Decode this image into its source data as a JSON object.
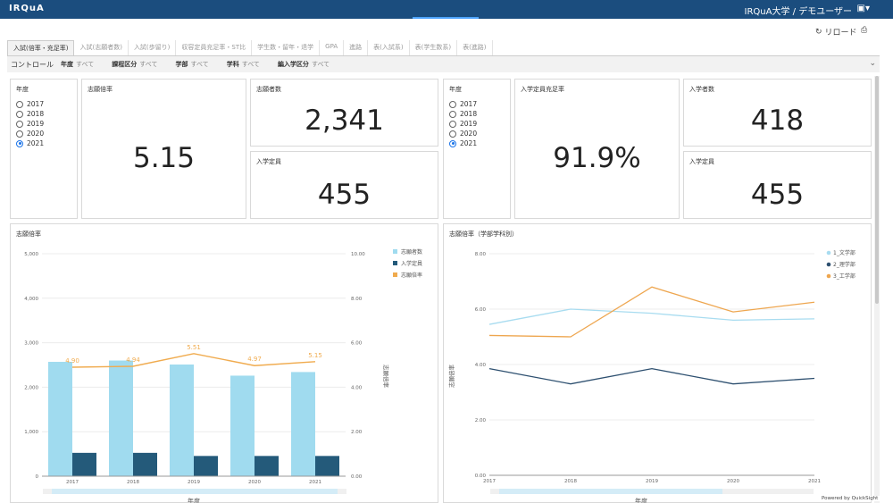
{
  "header": {
    "brand": "IRQuA",
    "user": "IRQuA大学 / デモユーザー",
    "user_icon": "▣▾"
  },
  "toolbar": {
    "reload_icon": "↻",
    "reload_label": "リロード",
    "print_icon": "⎙"
  },
  "tabs": [
    "入試(倍率・充足率)",
    "入試(志願者数)",
    "入試(歩留り)",
    "収容定員充足率・ST比",
    "学生数・留年・退学",
    "GPA",
    "進路",
    "表(入試系)",
    "表(学生数系)",
    "表(進路)"
  ],
  "controls": {
    "title": "コントロール",
    "filters": [
      {
        "label": "年度",
        "value": "すべて"
      },
      {
        "label": "課程区分",
        "value": "すべて"
      },
      {
        "label": "学部",
        "value": "すべて"
      },
      {
        "label": "学科",
        "value": "すべて"
      },
      {
        "label": "編入学区分",
        "value": "すべて"
      }
    ],
    "expand_icon": "⌄"
  },
  "year_filter_1": {
    "title": "年度",
    "options": [
      "2017",
      "2018",
      "2019",
      "2020",
      "2021"
    ],
    "selected": "2021"
  },
  "year_filter_2": {
    "title": "年度",
    "options": [
      "2017",
      "2018",
      "2019",
      "2020",
      "2021"
    ],
    "selected": "2021"
  },
  "kpi": {
    "ratio": {
      "title": "志願倍率",
      "value": "5.15"
    },
    "applicants": {
      "title": "志願者数",
      "value": "2,341"
    },
    "capacity_1": {
      "title": "入学定員",
      "value": "455"
    },
    "fill_rate": {
      "title": "入学定員充足率",
      "value": "91.9%"
    },
    "enrolled": {
      "title": "入学者数",
      "value": "418"
    },
    "capacity_2": {
      "title": "入学定員",
      "value": "455"
    }
  },
  "footer": {
    "powered": "Powered by QuickSight"
  },
  "colors": {
    "applicants": "#a0dbef",
    "capacity": "#245a7a",
    "ratio": "#f0ab4e",
    "arts": "#a8dcf0",
    "science": "#2e5070",
    "engineering": "#eea64f"
  },
  "chart_data": [
    {
      "type": "bar",
      "title": "志願倍率",
      "xlabel": "年度",
      "ylabel_right": "志願倍率",
      "categories": [
        "2017",
        "2018",
        "2019",
        "2020",
        "2021"
      ],
      "series": [
        {
          "name": "志願者数",
          "values": [
            2570,
            2600,
            2510,
            2260,
            2341
          ],
          "axis": "left"
        },
        {
          "name": "入学定員",
          "values": [
            525,
            525,
            455,
            455,
            455
          ],
          "axis": "left"
        },
        {
          "name": "志願倍率",
          "values": [
            4.9,
            4.94,
            5.51,
            4.97,
            5.15
          ],
          "axis": "right",
          "kind": "line"
        }
      ],
      "data_labels": [
        "4.90",
        "4.94",
        "5.51",
        "4.97",
        "5.15"
      ],
      "ylim": [
        0,
        5000
      ],
      "yticks": [
        "0",
        "1,000",
        "2,000",
        "3,000",
        "4,000",
        "5,000"
      ],
      "y2lim": [
        0,
        10
      ],
      "y2ticks": [
        "0.00",
        "2.00",
        "4.00",
        "6.00",
        "8.00",
        "10.00"
      ],
      "legend": "top-right"
    },
    {
      "type": "line",
      "title": "志願倍率（学部学科別）",
      "xlabel": "年度",
      "ylabel": "志願倍率",
      "categories": [
        "2017",
        "2018",
        "2019",
        "2020",
        "2021"
      ],
      "series": [
        {
          "name": "1_文学部",
          "values": [
            5.45,
            6.0,
            5.85,
            5.6,
            5.65
          ]
        },
        {
          "name": "2_理学部",
          "values": [
            3.85,
            3.3,
            3.85,
            3.3,
            3.5
          ]
        },
        {
          "name": "3_工学部",
          "values": [
            5.05,
            5.0,
            6.8,
            5.9,
            6.25
          ]
        }
      ],
      "ylim": [
        0,
        8
      ],
      "yticks": [
        "0.00",
        "2.00",
        "4.00",
        "6.00",
        "8.00"
      ],
      "legend": "top-right"
    }
  ]
}
